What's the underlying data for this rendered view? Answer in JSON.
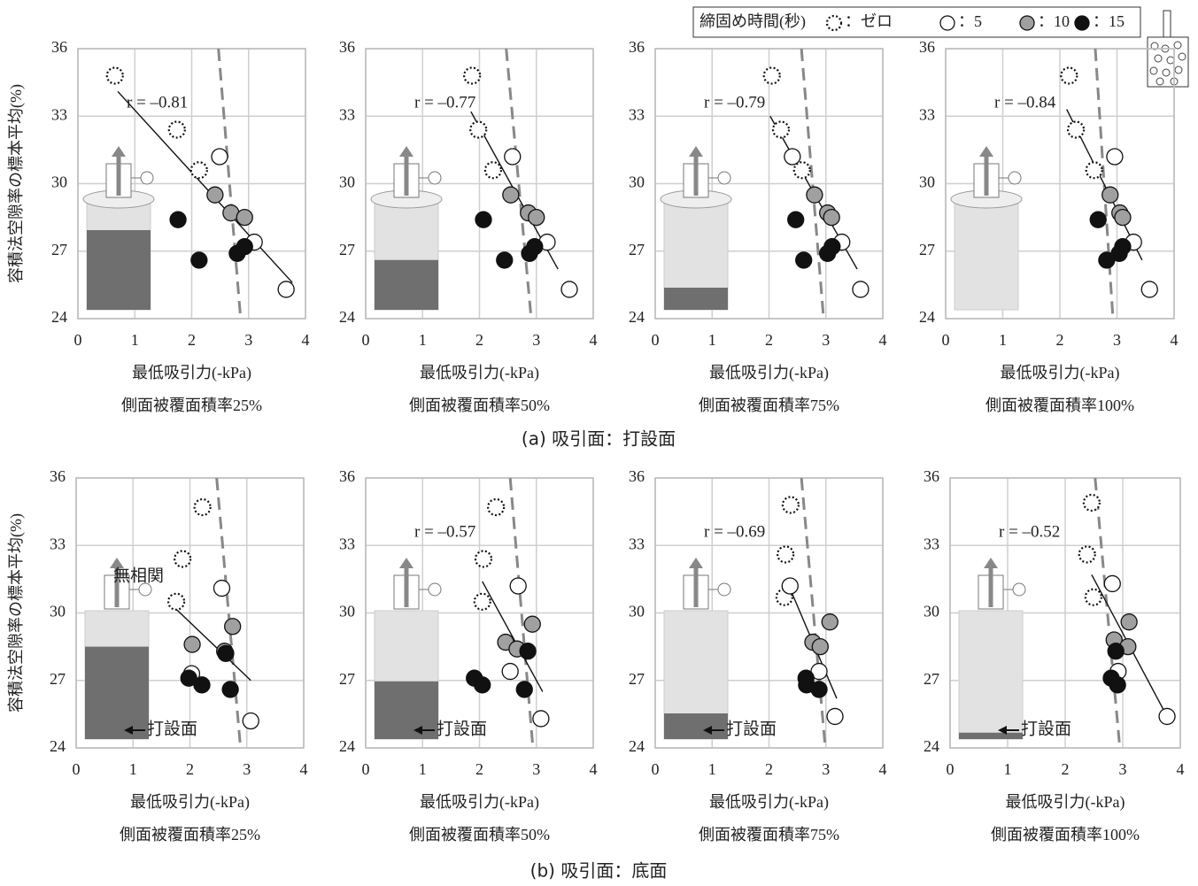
{
  "legend_title": "締固め時間(秒)",
  "captions": [
    "(a) 吸引面：打設面",
    "(b) 吸引面：底面"
  ],
  "chart_data": [
    {
      "type": "scatter",
      "x_label": "最低吸引力(-kPa)",
      "subtitle": "側面被覆面積率25%",
      "y_label": "容積法空隙率の標本平均(%)",
      "annotation": "r = –0.81",
      "xlim": [
        0,
        4
      ],
      "ylim": [
        24,
        36
      ],
      "xticks": [
        0,
        1,
        2,
        3,
        4
      ],
      "yticks": [
        24,
        27,
        30,
        33,
        36
      ],
      "grid": true,
      "series": [
        {
          "name": "：ゼロ",
          "color": "#ffffff",
          "linestyle": "dotted",
          "x": [
            0.65,
            1.74,
            2.13
          ],
          "values": [
            34.8,
            32.4,
            30.6
          ]
        },
        {
          "name": "：5",
          "color": "#ffffff",
          "x": [
            2.49,
            3.1,
            3.66
          ],
          "values": [
            31.2,
            27.4,
            25.3
          ]
        },
        {
          "name": "：10",
          "color": "#a0a0a0",
          "x": [
            2.41,
            2.69,
            2.93
          ],
          "values": [
            29.5,
            28.7,
            28.5
          ]
        },
        {
          "name": "：15",
          "color": "#111111",
          "x": [
            1.76,
            2.13,
            2.8,
            2.93
          ],
          "values": [
            28.4,
            26.6,
            26.9,
            27.2
          ]
        }
      ],
      "fit_line": {
        "x": [
          0.7,
          3.77
        ],
        "y": [
          34.1,
          25.6
        ]
      },
      "ref_line": {
        "x": [
          2.47,
          2.86
        ],
        "y": [
          36,
          24
        ]
      }
    },
    {
      "type": "scatter",
      "x_label": "最低吸引力(-kPa)",
      "subtitle": "側面被覆面積率50%",
      "annotation": "r = –0.77",
      "xlim": [
        0,
        4
      ],
      "ylim": [
        24,
        36
      ],
      "xticks": [
        0,
        1,
        2,
        3,
        4
      ],
      "yticks": [
        24,
        27,
        30,
        33,
        36
      ],
      "grid": true,
      "series": [
        {
          "color": "#ffffff",
          "linestyle": "dotted",
          "x": [
            1.87,
            1.98,
            2.24
          ],
          "values": [
            34.8,
            32.4,
            30.6
          ]
        },
        {
          "color": "#ffffff",
          "x": [
            2.58,
            3.19,
            3.58
          ],
          "values": [
            31.2,
            27.4,
            25.3
          ]
        },
        {
          "color": "#a0a0a0",
          "x": [
            2.55,
            2.86,
            3.0
          ],
          "values": [
            29.5,
            28.7,
            28.5
          ]
        },
        {
          "color": "#111111",
          "x": [
            2.07,
            2.44,
            2.88,
            2.97
          ],
          "values": [
            28.4,
            26.6,
            26.9,
            27.2
          ]
        }
      ],
      "fit_line": {
        "x": [
          1.85,
          3.38
        ],
        "y": [
          33.2,
          26.2
        ]
      },
      "ref_line": {
        "x": [
          2.47,
          2.91
        ],
        "y": [
          36,
          24
        ]
      }
    },
    {
      "type": "scatter",
      "x_label": "最低吸引力(-kPa)",
      "subtitle": "側面被覆面積率75%",
      "annotation": "r = –0.79",
      "xlim": [
        0,
        4
      ],
      "ylim": [
        24,
        36
      ],
      "xticks": [
        0,
        1,
        2,
        3,
        4
      ],
      "yticks": [
        24,
        27,
        30,
        33,
        36
      ],
      "grid": true,
      "series": [
        {
          "color": "#ffffff",
          "linestyle": "dotted",
          "x": [
            2.05,
            2.21,
            2.58
          ],
          "values": [
            34.8,
            32.4,
            30.6
          ]
        },
        {
          "color": "#ffffff",
          "x": [
            2.41,
            3.28,
            3.61
          ],
          "values": [
            31.2,
            27.4,
            25.3
          ]
        },
        {
          "color": "#a0a0a0",
          "x": [
            2.8,
            3.03,
            3.1
          ],
          "values": [
            29.5,
            28.7,
            28.5
          ]
        },
        {
          "color": "#111111",
          "x": [
            2.47,
            2.61,
            3.03,
            3.11
          ],
          "values": [
            28.4,
            26.6,
            26.9,
            27.2
          ]
        }
      ],
      "fit_line": {
        "x": [
          2.02,
          3.55
        ],
        "y": [
          33.0,
          26.2
        ]
      },
      "ref_line": {
        "x": [
          2.57,
          2.96
        ],
        "y": [
          36,
          24
        ]
      }
    },
    {
      "type": "scatter",
      "x_label": "最低吸引力(-kPa)",
      "subtitle": "側面被覆面積率100%",
      "annotation": "r = –0.84",
      "xlim": [
        0,
        4
      ],
      "ylim": [
        24,
        36
      ],
      "xticks": [
        0,
        1,
        2,
        3,
        4
      ],
      "yticks": [
        24,
        27,
        30,
        33,
        36
      ],
      "grid": true,
      "series": [
        {
          "color": "#ffffff",
          "linestyle": "dotted",
          "x": [
            2.16,
            2.28,
            2.6
          ],
          "values": [
            34.8,
            32.4,
            30.6
          ]
        },
        {
          "color": "#ffffff",
          "x": [
            2.96,
            3.29,
            3.57
          ],
          "values": [
            31.2,
            27.4,
            25.3
          ]
        },
        {
          "color": "#a0a0a0",
          "x": [
            2.88,
            3.05,
            3.1
          ],
          "values": [
            29.5,
            28.7,
            28.5
          ]
        },
        {
          "color": "#111111",
          "x": [
            2.67,
            2.82,
            3.04,
            3.1
          ],
          "values": [
            28.4,
            26.6,
            26.9,
            27.2
          ]
        }
      ],
      "fit_line": {
        "x": [
          2.12,
          3.44
        ],
        "y": [
          33.3,
          26.6
        ]
      },
      "ref_line": {
        "x": [
          2.62,
          2.93
        ],
        "y": [
          36,
          24
        ]
      }
    },
    {
      "type": "scatter",
      "x_label": "最低吸引力(-kPa)",
      "subtitle": "側面被覆面積率25%",
      "y_label": "容積法空隙率の標本平均(%)",
      "annotation": "無相関",
      "marker_label": "打設面",
      "xlim": [
        0,
        4
      ],
      "ylim": [
        24,
        36
      ],
      "xticks": [
        0,
        1,
        2,
        3,
        4
      ],
      "yticks": [
        24,
        27,
        30,
        33,
        36
      ],
      "grid": true,
      "series": [
        {
          "color": "#ffffff",
          "linestyle": "dotted",
          "x": [
            2.22,
            1.87,
            1.76
          ],
          "values": [
            34.7,
            32.4,
            30.5
          ]
        },
        {
          "color": "#ffffff",
          "x": [
            2.56,
            2.03,
            3.07
          ],
          "values": [
            31.1,
            27.3,
            25.2
          ]
        },
        {
          "color": "#a0a0a0",
          "x": [
            2.04,
            2.61,
            2.75
          ],
          "values": [
            28.6,
            28.3,
            29.4
          ]
        },
        {
          "color": "#111111",
          "x": [
            1.98,
            2.21,
            2.71,
            2.63
          ],
          "values": [
            27.1,
            26.8,
            26.6,
            28.2
          ]
        }
      ],
      "fit_line": {
        "x": [
          1.62,
          3.07
        ],
        "y": [
          30.5,
          27.0
        ]
      },
      "ref_line": {
        "x": [
          2.47,
          2.89
        ],
        "y": [
          36,
          24
        ]
      }
    },
    {
      "type": "scatter",
      "x_label": "最低吸引力(-kPa)",
      "subtitle": "側面被覆面積率50%",
      "annotation": "r = –0.57",
      "marker_label": "打設面",
      "xlim": [
        0,
        4
      ],
      "ylim": [
        24,
        36
      ],
      "xticks": [
        0,
        1,
        2,
        3,
        4
      ],
      "yticks": [
        24,
        27,
        30,
        33,
        36
      ],
      "grid": true,
      "series": [
        {
          "color": "#ffffff",
          "linestyle": "dotted",
          "x": [
            2.29,
            2.07,
            2.05
          ],
          "values": [
            34.7,
            32.4,
            30.5
          ]
        },
        {
          "color": "#ffffff",
          "x": [
            2.68,
            2.54,
            3.08
          ],
          "values": [
            31.2,
            27.4,
            25.3
          ]
        },
        {
          "color": "#a0a0a0",
          "x": [
            2.46,
            2.66,
            2.93
          ],
          "values": [
            28.7,
            28.4,
            29.5
          ]
        },
        {
          "color": "#111111",
          "x": [
            1.91,
            2.05,
            2.79,
            2.85
          ],
          "values": [
            27.1,
            26.8,
            26.6,
            28.3
          ]
        }
      ],
      "fit_line": {
        "x": [
          2.05,
          3.11
        ],
        "y": [
          31.4,
          26.5
        ]
      },
      "ref_line": {
        "x": [
          2.54,
          2.94
        ],
        "y": [
          36,
          24
        ]
      }
    },
    {
      "type": "scatter",
      "x_label": "最低吸引力(-kPa)",
      "subtitle": "側面被覆面積率75%",
      "annotation": "r = –0.69",
      "marker_label": "打設面",
      "xlim": [
        0,
        4
      ],
      "ylim": [
        24,
        36
      ],
      "xticks": [
        0,
        1,
        2,
        3,
        4
      ],
      "yticks": [
        24,
        27,
        30,
        33,
        36
      ],
      "grid": true,
      "series": [
        {
          "color": "#ffffff",
          "linestyle": "dotted",
          "x": [
            2.38,
            2.29,
            2.27
          ],
          "values": [
            34.8,
            32.6,
            30.7
          ]
        },
        {
          "color": "#ffffff",
          "x": [
            2.37,
            2.88,
            3.16
          ],
          "values": [
            31.2,
            27.4,
            25.4
          ]
        },
        {
          "color": "#a0a0a0",
          "x": [
            2.77,
            2.9,
            3.07
          ],
          "values": [
            28.7,
            28.5,
            29.6
          ]
        },
        {
          "color": "#111111",
          "x": [
            2.65,
            2.66,
            2.88
          ],
          "values": [
            27.1,
            26.8,
            26.6
          ]
        }
      ],
      "fit_line": {
        "x": [
          2.3,
          3.19
        ],
        "y": [
          31.5,
          26.2
        ]
      },
      "ref_line": {
        "x": [
          2.57,
          2.99
        ],
        "y": [
          36,
          24
        ]
      }
    },
    {
      "type": "scatter",
      "x_label": "最低吸引力(-kPa)",
      "subtitle": "側面被覆面積率100%",
      "annotation": "r = –0.52",
      "marker_label": "打設面",
      "xlim": [
        0,
        4
      ],
      "ylim": [
        24,
        36
      ],
      "xticks": [
        0,
        1,
        2,
        3,
        4
      ],
      "yticks": [
        24,
        27,
        30,
        33,
        36
      ],
      "grid": true,
      "series": [
        {
          "color": "#ffffff",
          "linestyle": "dotted",
          "x": [
            2.46,
            2.38,
            2.49
          ],
          "values": [
            34.9,
            32.6,
            30.7
          ]
        },
        {
          "color": "#ffffff",
          "x": [
            2.82,
            2.92,
            3.77
          ],
          "values": [
            31.3,
            27.4,
            25.4
          ]
        },
        {
          "color": "#a0a0a0",
          "x": [
            2.85,
            3.11,
            3.09
          ],
          "values": [
            28.8,
            29.6,
            28.5
          ]
        },
        {
          "color": "#111111",
          "x": [
            2.8,
            2.88,
            2.91
          ],
          "values": [
            27.1,
            28.3,
            26.8
          ]
        }
      ],
      "fit_line": {
        "x": [
          2.46,
          3.77
        ],
        "y": [
          31.7,
          25.4
        ]
      },
      "ref_line": {
        "x": [
          2.52,
          2.95
        ],
        "y": [
          36,
          24
        ]
      }
    }
  ]
}
